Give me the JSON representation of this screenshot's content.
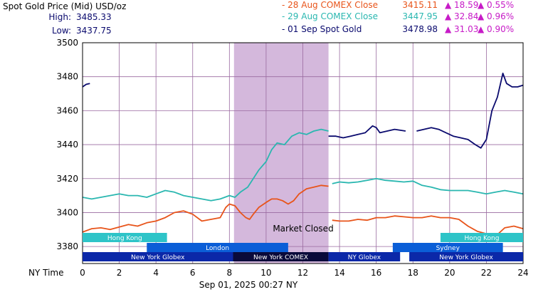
{
  "header": {
    "title": "Spot Gold Price (Mid) USD/oz",
    "high_label": "High:",
    "high_value": "3485.33",
    "low_label": "Low:",
    "low_value": "3437.75",
    "legend": [
      {
        "label": "- 28 Aug COMEX Close",
        "price": "3415.11",
        "change": "▲ 18.59",
        "pct": "▲ 0.55%",
        "color": "#e8541a"
      },
      {
        "label": "- 29 Aug COMEX Close",
        "price": "3447.95",
        "change": "▲ 32.84",
        "pct": "▲ 0.96%",
        "color": "#2ab7b0"
      },
      {
        "label": "- 01 Sep Spot Gold",
        "price": "3478.98",
        "change": "▲ 31.03",
        "pct": "▲ 0.90%",
        "color": "#0a0a6e"
      }
    ],
    "change_color": "#c71bc7"
  },
  "footer": {
    "xaxis_title": "NY Time",
    "timestamp": "Sep 01, 2025    00:27 NY"
  },
  "chart_data": {
    "type": "line",
    "xlabel": "NY Time",
    "ylabel": "",
    "xlim": [
      0,
      24
    ],
    "ylim": [
      3370,
      3500
    ],
    "x_ticks": [
      0,
      2,
      4,
      6,
      8,
      10,
      12,
      14,
      16,
      18,
      20,
      22,
      24
    ],
    "y_ticks": [
      3380,
      3400,
      3420,
      3440,
      3460,
      3480,
      3500
    ],
    "grid": true,
    "market_closed": {
      "label": "Market Closed",
      "x_start": 8.25,
      "x_end": 13.4,
      "color": "#d4b8dc"
    },
    "sessions": [
      {
        "name": "Hong Kong",
        "start": 0,
        "end": 4.6,
        "row": 0,
        "color": "#2ec4c8"
      },
      {
        "name": "Hong Kong",
        "start": 19.5,
        "end": 24,
        "row": 0,
        "color": "#2ec4c8"
      },
      {
        "name": "London",
        "start": 3.5,
        "end": 11.2,
        "row": 1,
        "color": "#0b5ed7"
      },
      {
        "name": "Sydney",
        "start": 16.9,
        "end": 22.9,
        "row": 1,
        "color": "#0b5ed7"
      },
      {
        "name": "New York Globex",
        "start": 0,
        "end": 8.2,
        "row": 2,
        "color": "#0b28a8"
      },
      {
        "name": "New York COMEX",
        "start": 8.2,
        "end": 13.4,
        "row": 2,
        "color": "#0a0a3a"
      },
      {
        "name": "NY Globex",
        "start": 13.4,
        "end": 17.3,
        "row": 2,
        "color": "#0b28a8"
      },
      {
        "name": "New York Globex",
        "start": 17.8,
        "end": 24,
        "row": 2,
        "color": "#0b28a8"
      }
    ],
    "series": [
      {
        "name": "28 Aug COMEX Close",
        "color": "#e8541a",
        "segments": [
          [
            [
              0,
              3388.5
            ],
            [
              0.5,
              3390.5
            ],
            [
              1,
              3391
            ],
            [
              1.5,
              3390
            ],
            [
              2,
              3391.5
            ],
            [
              2.5,
              3393
            ],
            [
              3,
              3392
            ],
            [
              3.5,
              3394
            ],
            [
              4,
              3395
            ],
            [
              4.5,
              3397
            ],
            [
              5,
              3400
            ],
            [
              5.5,
              3401
            ],
            [
              6,
              3399
            ],
            [
              6.5,
              3395
            ],
            [
              7,
              3396
            ],
            [
              7.5,
              3397
            ],
            [
              7.8,
              3403
            ],
            [
              8,
              3405
            ],
            [
              8.3,
              3404
            ],
            [
              8.6,
              3400
            ],
            [
              8.9,
              3397
            ],
            [
              9.1,
              3396
            ],
            [
              9.3,
              3399
            ],
            [
              9.6,
              3403
            ],
            [
              10,
              3406
            ],
            [
              10.3,
              3408
            ],
            [
              10.6,
              3408
            ],
            [
              10.9,
              3407
            ],
            [
              11.2,
              3405
            ],
            [
              11.5,
              3407
            ],
            [
              11.8,
              3411
            ],
            [
              12.2,
              3414
            ],
            [
              12.6,
              3415
            ],
            [
              13,
              3416
            ],
            [
              13.4,
              3415.5
            ]
          ],
          [
            [
              13.6,
              3395.5
            ],
            [
              14,
              3395
            ],
            [
              14.5,
              3395
            ],
            [
              15,
              3396
            ],
            [
              15.5,
              3395.5
            ],
            [
              16,
              3397
            ],
            [
              16.5,
              3397
            ],
            [
              17,
              3398
            ],
            [
              17.5,
              3397.5
            ],
            [
              18,
              3397
            ],
            [
              18.5,
              3397
            ],
            [
              19,
              3398
            ],
            [
              19.5,
              3397
            ],
            [
              20,
              3397
            ],
            [
              20.5,
              3396
            ],
            [
              21,
              3392
            ],
            [
              21.5,
              3389
            ],
            [
              22,
              3387.5
            ],
            [
              22.5,
              3386
            ],
            [
              23,
              3391
            ],
            [
              23.5,
              3392
            ],
            [
              24,
              3390.5
            ]
          ]
        ]
      },
      {
        "name": "29 Aug COMEX Close",
        "color": "#2ab7b0",
        "segments": [
          [
            [
              0,
              3409
            ],
            [
              0.5,
              3408
            ],
            [
              1,
              3409
            ],
            [
              1.5,
              3410
            ],
            [
              2,
              3411
            ],
            [
              2.5,
              3410
            ],
            [
              3,
              3410
            ],
            [
              3.5,
              3409
            ],
            [
              4,
              3411
            ],
            [
              4.5,
              3413
            ],
            [
              5,
              3412
            ],
            [
              5.5,
              3410
            ],
            [
              6,
              3409
            ],
            [
              6.5,
              3408
            ],
            [
              7,
              3407
            ],
            [
              7.5,
              3408
            ],
            [
              8,
              3410
            ],
            [
              8.3,
              3409
            ],
            [
              8.6,
              3412
            ],
            [
              9,
              3415
            ],
            [
              9.3,
              3420
            ],
            [
              9.6,
              3425
            ],
            [
              10,
              3430
            ],
            [
              10.3,
              3437
            ],
            [
              10.6,
              3441
            ],
            [
              11,
              3440
            ],
            [
              11.4,
              3445
            ],
            [
              11.8,
              3447
            ],
            [
              12.2,
              3446
            ],
            [
              12.6,
              3448
            ],
            [
              13,
              3449
            ],
            [
              13.4,
              3448
            ]
          ],
          [
            [
              13.6,
              3417
            ],
            [
              14,
              3418
            ],
            [
              14.5,
              3417.5
            ],
            [
              15,
              3418
            ],
            [
              15.5,
              3419
            ],
            [
              16,
              3420
            ],
            [
              16.5,
              3419
            ],
            [
              17,
              3418.5
            ],
            [
              17.5,
              3418
            ],
            [
              18,
              3418.5
            ],
            [
              18.5,
              3416
            ],
            [
              19,
              3415
            ],
            [
              19.5,
              3413.5
            ],
            [
              20,
              3413
            ],
            [
              20.5,
              3413
            ],
            [
              21,
              3413
            ],
            [
              21.5,
              3412
            ],
            [
              22,
              3411
            ],
            [
              22.5,
              3412
            ],
            [
              23,
              3413
            ],
            [
              23.5,
              3412
            ],
            [
              24,
              3411
            ]
          ]
        ]
      },
      {
        "name": "01 Sep Spot Gold",
        "color": "#0a0a6e",
        "segments": [
          [
            [
              0,
              3474
            ],
            [
              0.2,
              3475.5
            ],
            [
              0.4,
              3476
            ]
          ],
          [
            [
              13.4,
              3445
            ],
            [
              13.8,
              3445
            ],
            [
              14.2,
              3444
            ],
            [
              14.6,
              3445
            ],
            [
              15,
              3446
            ],
            [
              15.4,
              3447
            ],
            [
              15.8,
              3451
            ],
            [
              16,
              3450
            ],
            [
              16.2,
              3447
            ],
            [
              16.6,
              3448
            ],
            [
              17,
              3449
            ],
            [
              17.6,
              3448
            ]
          ],
          [
            [
              18.2,
              3448
            ],
            [
              18.6,
              3449
            ],
            [
              19,
              3450
            ],
            [
              19.4,
              3449
            ],
            [
              19.8,
              3447
            ],
            [
              20.2,
              3445
            ],
            [
              20.6,
              3444
            ],
            [
              21,
              3443
            ],
            [
              21.4,
              3440
            ],
            [
              21.7,
              3438
            ],
            [
              22,
              3443
            ],
            [
              22.3,
              3460
            ],
            [
              22.6,
              3468
            ],
            [
              22.9,
              3482
            ],
            [
              23.1,
              3476
            ],
            [
              23.4,
              3474
            ],
            [
              23.7,
              3474
            ],
            [
              24,
              3475
            ]
          ]
        ]
      }
    ]
  }
}
